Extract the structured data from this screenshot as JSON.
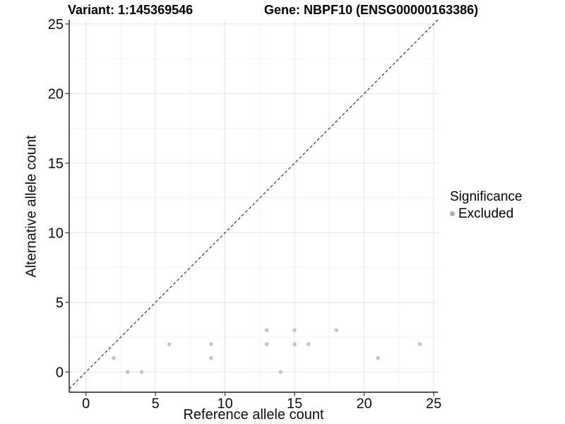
{
  "chart_data": {
    "type": "scatter",
    "title_left": "Variant: 1:145369546",
    "title_right": "Gene: NBPF10 (ENSG00000163386)",
    "xlabel": "Reference allele count",
    "ylabel": "Alternative allele count",
    "xticks": [
      0,
      5,
      10,
      15,
      20,
      25
    ],
    "yticks": [
      0,
      5,
      10,
      15,
      20,
      25
    ],
    "minor_xticks": [
      2.5,
      7.5,
      12.5,
      17.5,
      22.5
    ],
    "minor_yticks": [
      2.5,
      7.5,
      12.5,
      17.5,
      22.5
    ],
    "xlim": [
      -1.2,
      25.3
    ],
    "ylim": [
      -1.45,
      25.3
    ],
    "grid": true,
    "reference_line": {
      "type": "identity",
      "style": "dashed",
      "color": "#222222"
    },
    "series": [
      {
        "name": "Excluded",
        "color": "#c4c4c4",
        "points": [
          [
            2,
            1
          ],
          [
            3,
            0
          ],
          [
            4,
            0
          ],
          [
            6,
            2
          ],
          [
            9,
            1
          ],
          [
            9,
            2
          ],
          [
            13,
            2
          ],
          [
            13,
            3
          ],
          [
            14,
            0
          ],
          [
            15,
            2
          ],
          [
            15,
            3
          ],
          [
            16,
            2
          ],
          [
            18,
            3
          ],
          [
            21,
            1
          ],
          [
            24,
            2
          ]
        ]
      }
    ],
    "legend": {
      "title": "Significance",
      "position": "right",
      "items": [
        {
          "label": "Excluded",
          "color": "#b0b0b0"
        }
      ]
    },
    "colors": {
      "background": "#ffffff",
      "grid_major": "#e5e5e5",
      "grid_minor": "#f3f3f3",
      "axis": "#1a1a1a",
      "tick": "#333333"
    }
  }
}
